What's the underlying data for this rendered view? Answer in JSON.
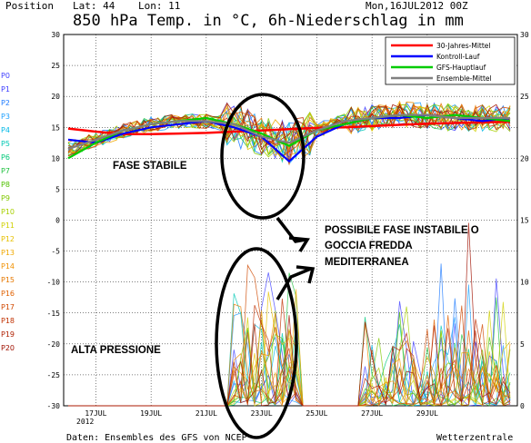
{
  "header": {
    "position_label": "Position",
    "lat_label": "Lat: 44",
    "lon_label": "Lon: 11",
    "date": "Mon,16JUL2012  00Z"
  },
  "chart_data": {
    "type": "line",
    "title": "850 hPa Temp. in °C, 6h-Niederschlag in mm",
    "left_axis": {
      "ylim": [
        -30,
        30
      ],
      "ticks": [
        30,
        25,
        20,
        15,
        10,
        5,
        0,
        -5,
        -10,
        -15,
        -20,
        -25,
        -30
      ]
    },
    "right_axis": {
      "ylim": [
        0,
        30
      ],
      "ticks": [
        0,
        5,
        10,
        15,
        20,
        25,
        30
      ]
    },
    "x_ticks": [
      "17JUL",
      "19JUL",
      "21JUL",
      "23JUL",
      "25JUL",
      "27JUL",
      "29JUL"
    ],
    "x_sub": "2012",
    "grid": true,
    "legend_position": "top-right",
    "members": [
      "P0",
      "P1",
      "P2",
      "P3",
      "P4",
      "P5",
      "P6",
      "P7",
      "P8",
      "P9",
      "P10",
      "P11",
      "P12",
      "P13",
      "P14",
      "P15",
      "P16",
      "P17",
      "P18",
      "P19",
      "P20"
    ],
    "member_colors": [
      "#4040ff",
      "#3d3dff",
      "#1e7bff",
      "#1ea0ff",
      "#00b8e6",
      "#00c8b4",
      "#00c878",
      "#20c040",
      "#50c000",
      "#80c800",
      "#a8d000",
      "#d0d000",
      "#e6c000",
      "#f0a800",
      "#f09000",
      "#e67800",
      "#e06000",
      "#d04800",
      "#c03000",
      "#b02000",
      "#a01000"
    ],
    "series": [
      {
        "name": "30-Jahres-Mittel",
        "color": "#ff0000",
        "x": [
          0,
          1,
          2,
          3,
          4,
          5,
          6,
          7,
          8,
          9,
          10,
          11,
          12,
          13,
          14,
          15,
          16
        ],
        "values": [
          14.8,
          14.3,
          13.9,
          13.9,
          14.0,
          14.1,
          14.3,
          14.5,
          14.7,
          14.9,
          15.0,
          15.2,
          15.4,
          15.6,
          15.7,
          15.8,
          15.9
        ]
      },
      {
        "name": "Kontroll-Lauf",
        "color": "#0000ff",
        "x": [
          0,
          1,
          2,
          3,
          4,
          5,
          6,
          7,
          8,
          9,
          10,
          11,
          12,
          13,
          14,
          15,
          16
        ],
        "values": [
          13.0,
          12.5,
          14.0,
          15.0,
          15.5,
          16.0,
          15.0,
          13.5,
          9.5,
          13.5,
          15.5,
          16.5,
          16.5,
          17.0,
          16.5,
          16.0,
          16.5
        ]
      },
      {
        "name": "GFS-Hauptlauf",
        "color": "#00cc00",
        "x": [
          0,
          1,
          2,
          3,
          4,
          5,
          6,
          7,
          8,
          9,
          10,
          11,
          12,
          13,
          14,
          15,
          16
        ],
        "values": [
          10.0,
          12.5,
          14.5,
          15.5,
          16.0,
          16.5,
          15.5,
          14.0,
          12.0,
          14.5,
          15.5,
          16.5,
          17.0,
          16.5,
          17.0,
          16.5,
          16.0
        ]
      },
      {
        "name": "Ensemble-Mittel",
        "color": "#808080",
        "x": [
          0,
          1,
          2,
          3,
          4,
          5,
          6,
          7,
          8,
          9,
          10,
          11,
          12,
          13,
          14,
          15,
          16
        ],
        "values": [
          11.5,
          13.0,
          14.5,
          15.5,
          16.0,
          16.0,
          15.5,
          13.5,
          12.5,
          14.5,
          16.0,
          16.5,
          17.0,
          17.0,
          16.5,
          16.5,
          16.5
        ]
      }
    ],
    "annotations": [
      "FASE STABILE",
      "POSSIBILE FASE INSTABILE O",
      "GOCCIA FREDDA",
      "MEDITERRANEA",
      "ALTA PRESSIONE"
    ]
  },
  "footer": {
    "source": "Daten: Ensembles des GFS von NCEP",
    "brand": "Wetterzentrale"
  }
}
